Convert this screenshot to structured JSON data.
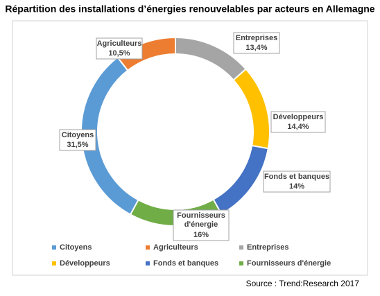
{
  "chart_data": {
    "type": "donut",
    "title": "Répartition des installations d’énergies renouvelables par acteurs en Allemagne",
    "categories": [
      "Citoyens",
      "Agriculteurs",
      "Entreprises",
      "Développeurs",
      "Fonds et banques",
      "Fournisseurs d'énergie"
    ],
    "values": [
      31.5,
      10.5,
      13.4,
      14.4,
      14,
      16
    ],
    "value_labels": [
      "31,5%",
      "10,5%",
      "13,4%",
      "14,4%",
      "14%",
      "16%"
    ],
    "colors": [
      "#5b9bd5",
      "#ed7d31",
      "#a5a5a5",
      "#ffc000",
      "#4472c4",
      "#70ad47"
    ],
    "source": "Source : Trend:Research 2017"
  }
}
